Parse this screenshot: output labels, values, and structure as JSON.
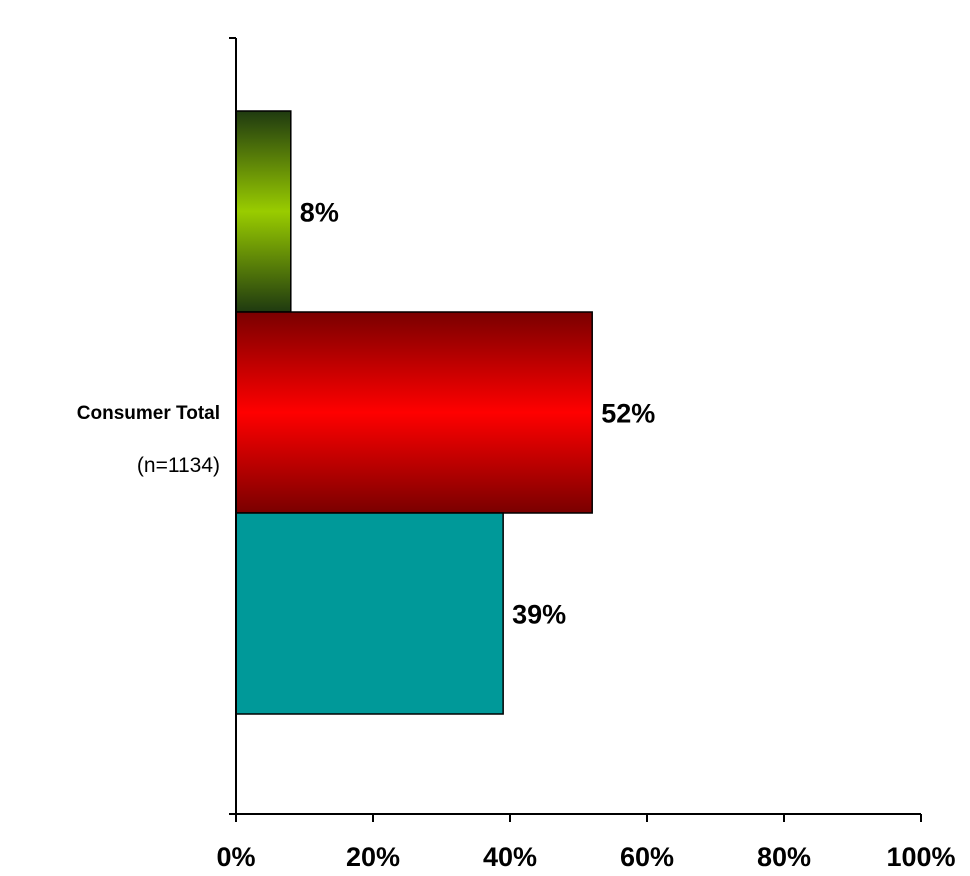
{
  "chart_data": {
    "type": "bar",
    "orientation": "horizontal",
    "categories": [
      "Consumer Total"
    ],
    "category_sublabels": [
      "(n=1134)"
    ],
    "series": [
      {
        "values": [
          8
        ],
        "color": "#8fc400",
        "data_label": "8%"
      },
      {
        "values": [
          52
        ],
        "color": "#ff0000",
        "data_label": "52%"
      },
      {
        "values": [
          39
        ],
        "color": "#009999",
        "data_label": "39%"
      }
    ],
    "xlim": [
      0,
      100
    ],
    "xticks": [
      0,
      20,
      40,
      60,
      80,
      100
    ],
    "xtick_labels": [
      "0%",
      "20%",
      "40%",
      "60%",
      "80%",
      "100%"
    ],
    "title": "",
    "xlabel": "",
    "ylabel": "",
    "grid": false,
    "legend": "none"
  }
}
